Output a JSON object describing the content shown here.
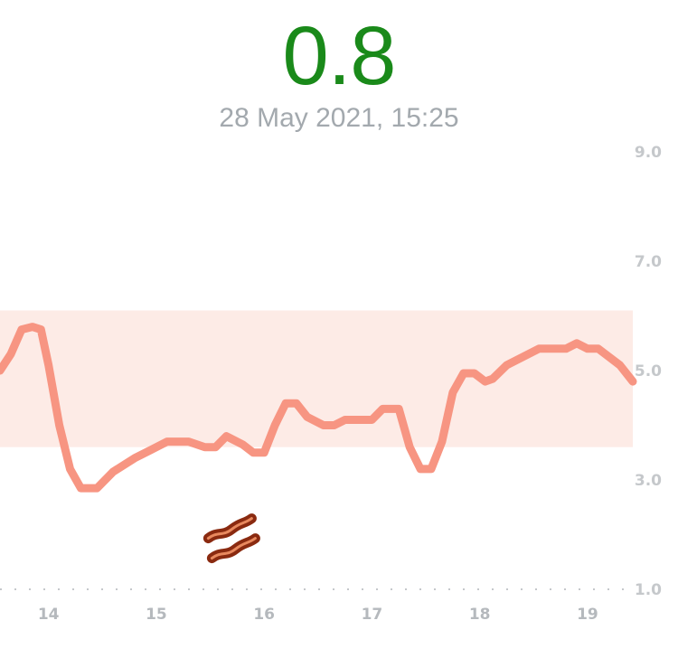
{
  "header": {
    "value": "0.8",
    "timestamp": "28 May 2021, 15:25",
    "value_color": "#1a8a1a"
  },
  "chart_data": {
    "type": "line",
    "title": "",
    "xlabel": "",
    "ylabel": "",
    "xlim": [
      13.55,
      19.42
    ],
    "ylim": [
      1.0,
      9.0
    ],
    "y_ticks": [
      "1.0",
      "3.0",
      "5.0",
      "7.0",
      "9.0"
    ],
    "x_ticks": [
      "14",
      "15",
      "16",
      "17",
      "18",
      "19"
    ],
    "target_range": [
      3.6,
      6.1
    ],
    "line_color": "#f79582",
    "band_color": "#fdebe6",
    "annotations": [
      {
        "icon": "bacon-icon",
        "x": 15.7,
        "y": 1.8
      }
    ],
    "series": [
      {
        "values": [
          [
            13.55,
            5.0
          ],
          [
            13.65,
            5.3
          ],
          [
            13.75,
            5.75
          ],
          [
            13.85,
            5.8
          ],
          [
            13.93,
            5.75
          ],
          [
            14.0,
            5.1
          ],
          [
            14.1,
            4.0
          ],
          [
            14.2,
            3.2
          ],
          [
            14.3,
            2.85
          ],
          [
            14.45,
            2.85
          ],
          [
            14.6,
            3.15
          ],
          [
            14.8,
            3.4
          ],
          [
            14.95,
            3.55
          ],
          [
            15.1,
            3.7
          ],
          [
            15.3,
            3.7
          ],
          [
            15.45,
            3.6
          ],
          [
            15.55,
            3.6
          ],
          [
            15.65,
            3.8
          ],
          [
            15.8,
            3.65
          ],
          [
            15.9,
            3.5
          ],
          [
            16.0,
            3.5
          ],
          [
            16.1,
            4.0
          ],
          [
            16.2,
            4.4
          ],
          [
            16.3,
            4.4
          ],
          [
            16.4,
            4.15
          ],
          [
            16.55,
            4.0
          ],
          [
            16.65,
            4.0
          ],
          [
            16.75,
            4.1
          ],
          [
            17.0,
            4.1
          ],
          [
            17.1,
            4.3
          ],
          [
            17.25,
            4.3
          ],
          [
            17.35,
            3.6
          ],
          [
            17.45,
            3.2
          ],
          [
            17.55,
            3.2
          ],
          [
            17.65,
            3.7
          ],
          [
            17.75,
            4.6
          ],
          [
            17.85,
            4.95
          ],
          [
            17.95,
            4.95
          ],
          [
            18.05,
            4.8
          ],
          [
            18.12,
            4.85
          ],
          [
            18.25,
            5.1
          ],
          [
            18.4,
            5.25
          ],
          [
            18.55,
            5.4
          ],
          [
            18.8,
            5.4
          ],
          [
            18.9,
            5.5
          ],
          [
            19.0,
            5.4
          ],
          [
            19.1,
            5.4
          ],
          [
            19.2,
            5.25
          ],
          [
            19.3,
            5.1
          ],
          [
            19.42,
            4.8
          ]
        ]
      }
    ]
  }
}
